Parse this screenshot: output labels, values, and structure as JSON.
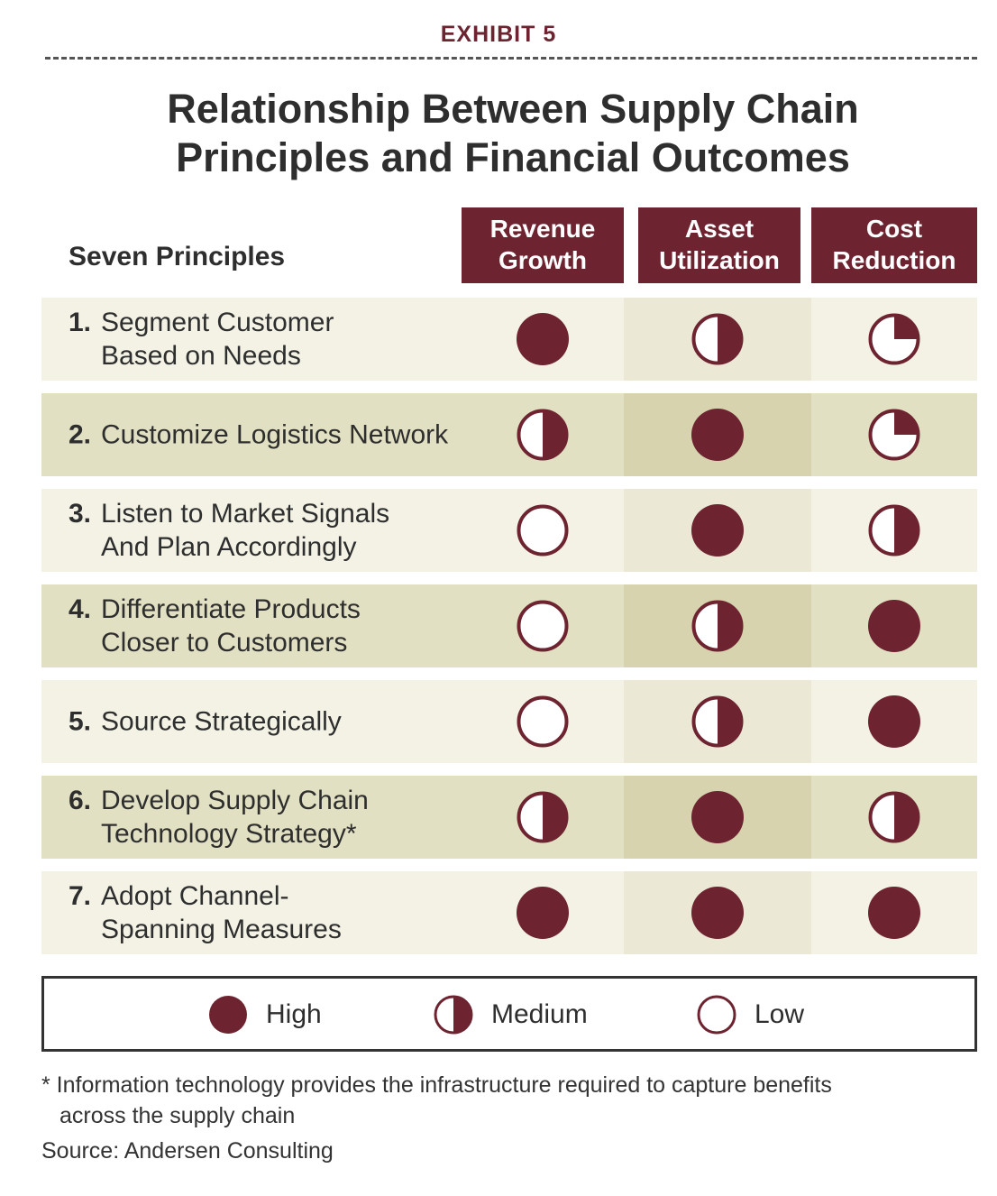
{
  "header": {
    "exhibit_label": "EXHIBIT 5",
    "title_line1": "Relationship Between Supply Chain",
    "title_line2": "Principles and Financial Outcomes"
  },
  "table": {
    "row_header": "Seven Principles",
    "columns": [
      {
        "line1": "Revenue",
        "line2": "Growth"
      },
      {
        "line1": "Asset",
        "line2": "Utilization"
      },
      {
        "line1": "Cost",
        "line2": "Reduction"
      }
    ],
    "rows": [
      {
        "num": "1.",
        "line1": "Segment Customer",
        "line2": "Based on Needs",
        "ratings": [
          "high",
          "medium",
          "low-quarter"
        ]
      },
      {
        "num": "2.",
        "line1": "Customize Logistics Network",
        "line2": "",
        "ratings": [
          "medium",
          "high",
          "low-quarter"
        ]
      },
      {
        "num": "3.",
        "line1": "Listen to Market Signals",
        "line2": "And Plan Accordingly",
        "ratings": [
          "low",
          "high",
          "medium"
        ]
      },
      {
        "num": "4.",
        "line1": "Differentiate Products",
        "line2": "Closer to Customers",
        "ratings": [
          "low",
          "medium",
          "high"
        ]
      },
      {
        "num": "5.",
        "line1": "Source Strategically",
        "line2": "",
        "ratings": [
          "low",
          "medium",
          "high"
        ]
      },
      {
        "num": "6.",
        "line1": "Develop Supply Chain",
        "line2": "Technology Strategy*",
        "ratings": [
          "medium",
          "high",
          "medium"
        ]
      },
      {
        "num": "7.",
        "line1": "Adopt Channel-",
        "line2": "Spanning Measures",
        "ratings": [
          "high",
          "high",
          "high"
        ]
      }
    ]
  },
  "legend": {
    "high": "High",
    "medium": "Medium",
    "low": "Low"
  },
  "footnote": {
    "line1": "* Information technology provides the infrastructure required to capture benefits",
    "line2": "across the supply chain"
  },
  "source": "Source: Andersen Consulting",
  "colors": {
    "accent": "#6e2430",
    "row_light": "#f3f2e5",
    "row_light_mid": "#ebe9d6",
    "row_dark": "#e2e0c2",
    "row_dark_mid": "#d6d3ae"
  }
}
